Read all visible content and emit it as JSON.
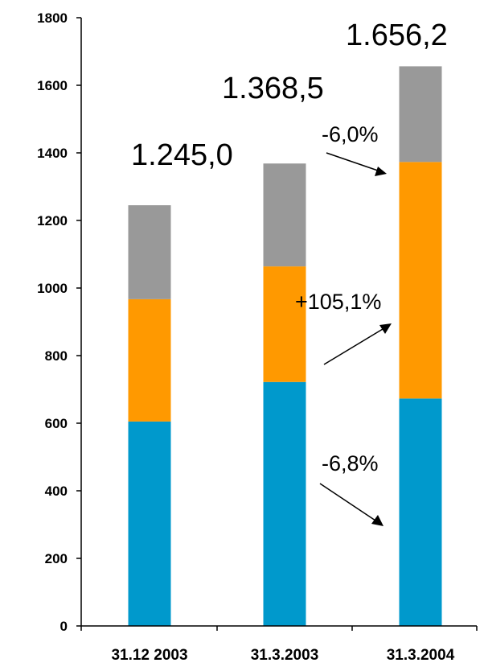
{
  "chart_data": {
    "type": "bar",
    "stacked": true,
    "categories": [
      "31.12 2003",
      "31.3.2003",
      "31.3.2004"
    ],
    "series": [
      {
        "color": "#0099CC",
        "values": [
          605,
          722,
          673
        ]
      },
      {
        "color": "#FF9900",
        "values": [
          362,
          342,
          700
        ]
      },
      {
        "color": "#999999",
        "values": [
          278,
          304.5,
          283.2
        ]
      }
    ],
    "totals": [
      "1.245,0",
      "1.368,5",
      "1.656,2"
    ],
    "annotations": [
      "-6,0%",
      "+105,1%",
      "-6,8%"
    ],
    "ylim": [
      0,
      1800
    ],
    "yticks": [
      "0",
      "200",
      "400",
      "600",
      "800",
      "1000",
      "1200",
      "1400",
      "1600",
      "1800"
    ],
    "grid": false,
    "legend": "none"
  }
}
